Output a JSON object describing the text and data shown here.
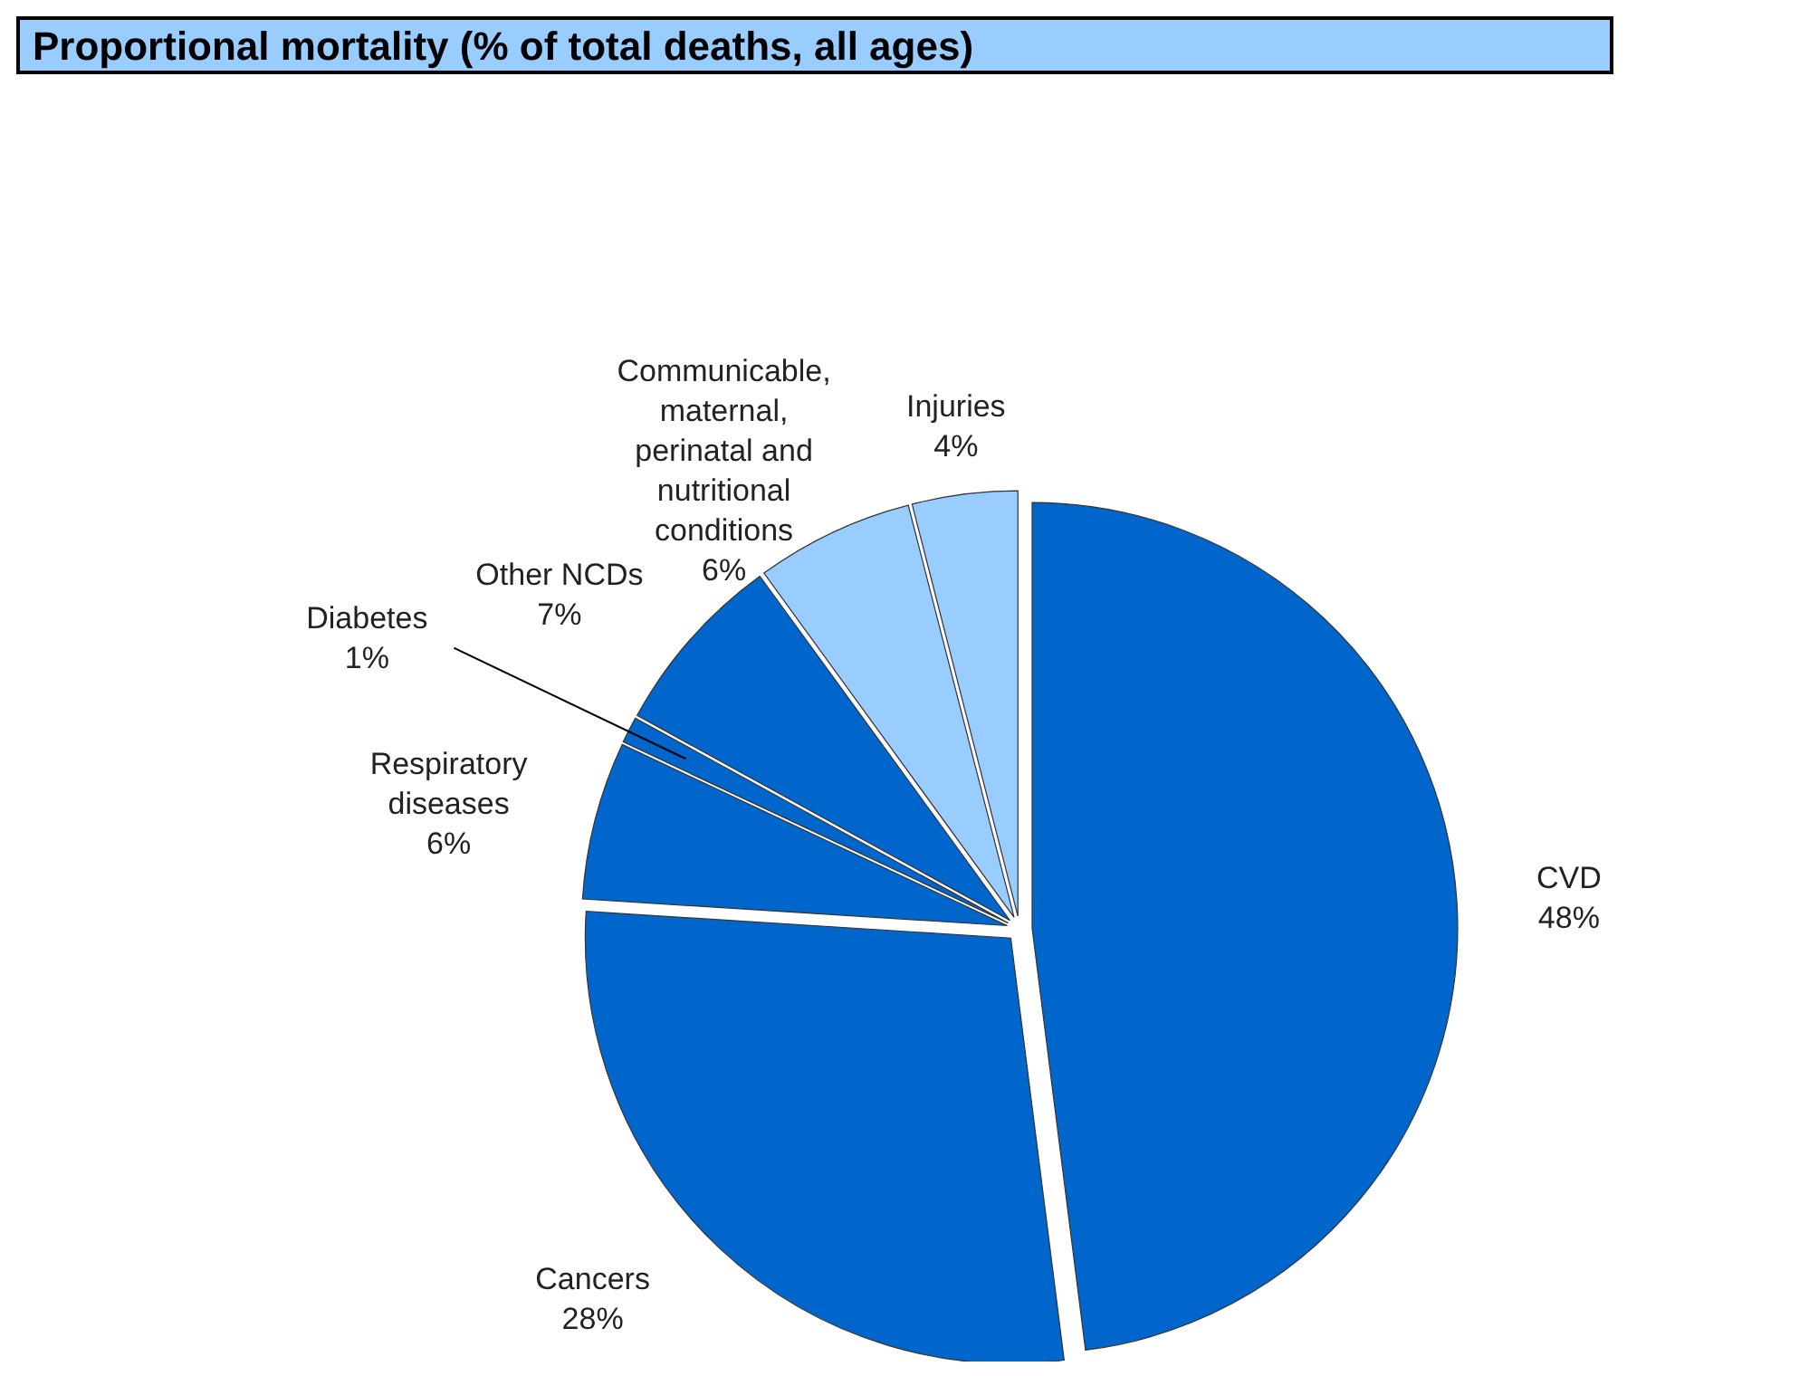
{
  "chart_data": {
    "type": "pie",
    "title": "Proportional mortality (% of total deaths, all ages)",
    "categories": [
      "CVD",
      "Cancers",
      "Respiratory diseases",
      "Diabetes",
      "Other NCDs",
      "Communicable, maternal, perinatal and nutritional conditions",
      "Injuries"
    ],
    "values": [
      48,
      28,
      6,
      1,
      7,
      6,
      4
    ],
    "colors": [
      "#0066cc",
      "#0066cc",
      "#0066cc",
      "#0066cc",
      "#0066cc",
      "#99ccff",
      "#99ccff"
    ],
    "value_labels": [
      "48%",
      "28%",
      "6%",
      "1%",
      "7%",
      "6%",
      "4%"
    ]
  }
}
